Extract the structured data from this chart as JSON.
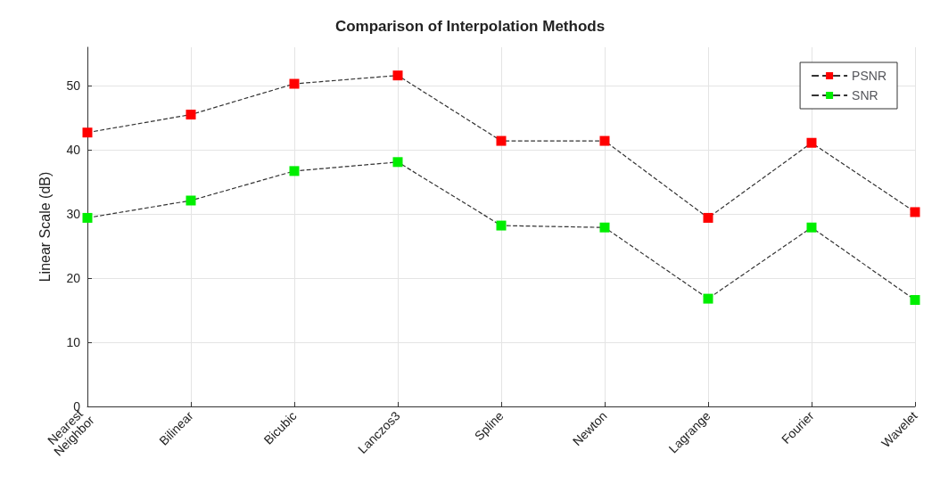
{
  "chart_data": {
    "type": "line",
    "title": "Comparison of Interpolation Methods",
    "ylabel": "Linear Scale (dB)",
    "categories": [
      "Nearest Neighbor",
      "Bilinear",
      "Bicubic",
      "Lanczos3",
      "Spline",
      "Newton",
      "Lagrange",
      "Fourier",
      "Wavelet"
    ],
    "series": [
      {
        "name": "PSNR",
        "color": "#ff0000",
        "values": [
          42.7,
          45.5,
          50.3,
          51.6,
          41.4,
          41.4,
          29.4,
          41.1,
          30.3
        ]
      },
      {
        "name": "SNR",
        "color": "#00ee00",
        "values": [
          29.4,
          32.1,
          36.7,
          38.1,
          28.2,
          27.9,
          16.8,
          27.9,
          16.6
        ]
      }
    ],
    "ylim": [
      0,
      56
    ],
    "yticks": [
      0,
      10,
      20,
      30,
      40,
      50
    ],
    "grid": true,
    "legend": "top right",
    "marker": "square",
    "line_style": "dashed"
  }
}
